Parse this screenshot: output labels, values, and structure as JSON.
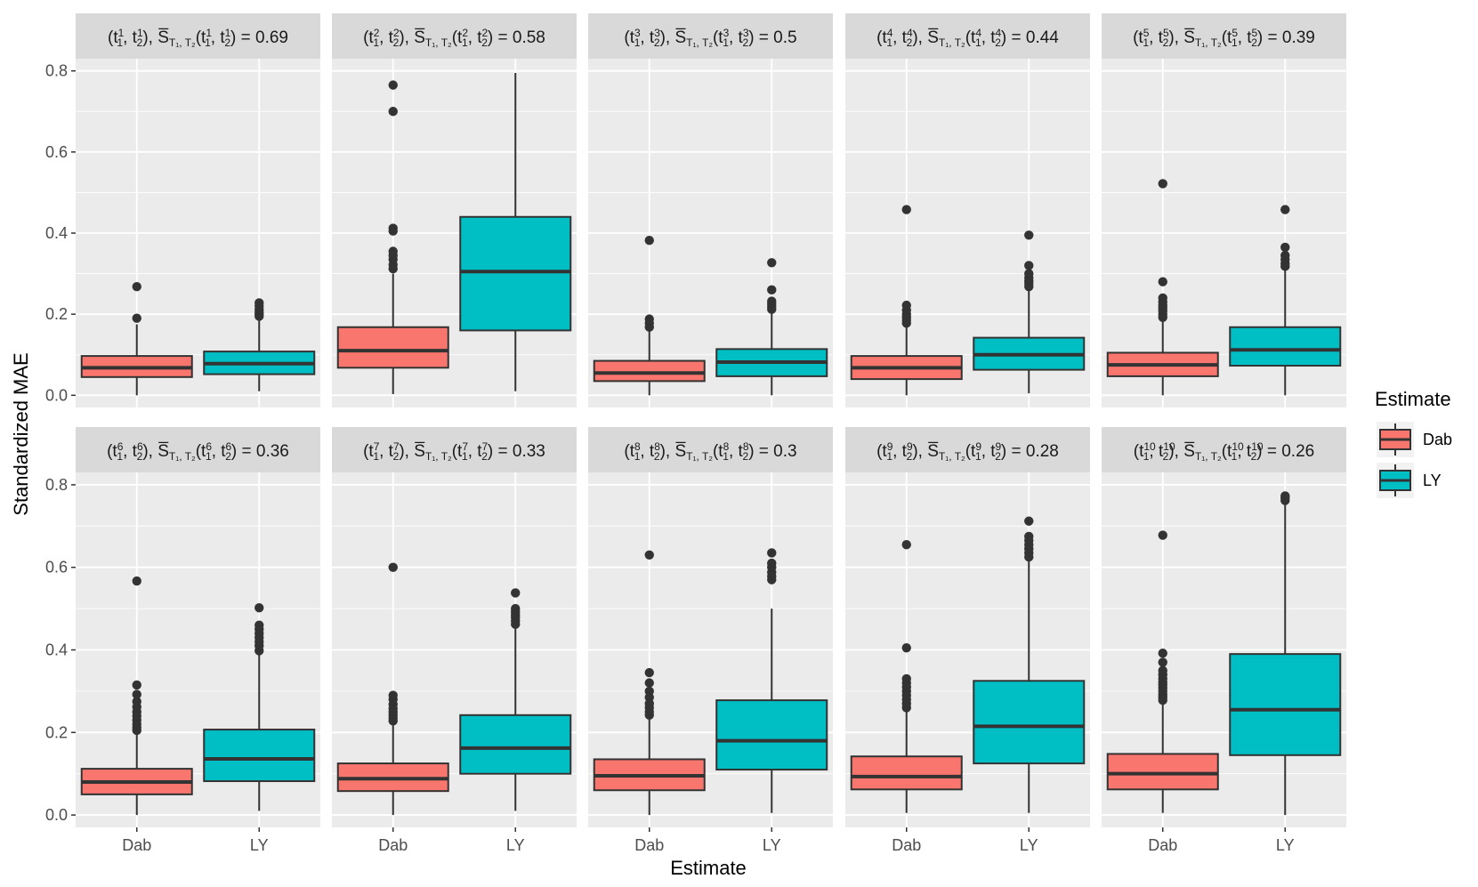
{
  "chart_data": {
    "type": "boxplot",
    "ylabel": "Standardized MAE",
    "xlabel": "Estimate",
    "ylim": [
      -0.03,
      0.83
    ],
    "y_ticks": [
      0.0,
      0.2,
      0.4,
      0.6,
      0.8
    ],
    "y_tick_labels": [
      "0.0",
      "0.2",
      "0.4",
      "0.6",
      "0.8"
    ],
    "categories": [
      "Dab",
      "LY"
    ],
    "legend": {
      "title": "Estimate",
      "position": "right",
      "entries": [
        {
          "label": "Dab",
          "color": "#F8766D"
        },
        {
          "label": "LY",
          "color": "#00BFC4"
        }
      ]
    },
    "panels": [
      {
        "index": 1,
        "s_value": "0.69",
        "boxes": [
          {
            "cat": "Dab",
            "min": 0.0,
            "q1": 0.045,
            "median": 0.068,
            "q3": 0.097,
            "max": 0.175,
            "outliers": [
              0.19,
              0.268
            ]
          },
          {
            "cat": "LY",
            "min": 0.01,
            "q1": 0.052,
            "median": 0.078,
            "q3": 0.108,
            "max": 0.188,
            "outliers": [
              0.195,
              0.2,
              0.205,
              0.212,
              0.22,
              0.228
            ]
          }
        ]
      },
      {
        "index": 2,
        "s_value": "0.58",
        "boxes": [
          {
            "cat": "Dab",
            "min": 0.003,
            "q1": 0.068,
            "median": 0.11,
            "q3": 0.168,
            "max": 0.3,
            "outliers": [
              0.312,
              0.322,
              0.335,
              0.345,
              0.355,
              0.405,
              0.412,
              0.7,
              0.765
            ]
          },
          {
            "cat": "LY",
            "min": 0.01,
            "q1": 0.16,
            "median": 0.305,
            "q3": 0.44,
            "max": 0.795,
            "outliers": []
          }
        ]
      },
      {
        "index": 3,
        "s_value": "0.5",
        "boxes": [
          {
            "cat": "Dab",
            "min": 0.0,
            "q1": 0.035,
            "median": 0.055,
            "q3": 0.085,
            "max": 0.16,
            "outliers": [
              0.168,
              0.178,
              0.188,
              0.382
            ]
          },
          {
            "cat": "LY",
            "min": 0.0,
            "q1": 0.047,
            "median": 0.082,
            "q3": 0.114,
            "max": 0.205,
            "outliers": [
              0.212,
              0.218,
              0.225,
              0.232,
              0.26,
              0.327
            ]
          }
        ]
      },
      {
        "index": 4,
        "s_value": "0.44",
        "boxes": [
          {
            "cat": "Dab",
            "min": 0.0,
            "q1": 0.04,
            "median": 0.068,
            "q3": 0.097,
            "max": 0.17,
            "outliers": [
              0.178,
              0.185,
              0.192,
              0.2,
              0.21,
              0.222,
              0.458
            ]
          },
          {
            "cat": "LY",
            "min": 0.005,
            "q1": 0.063,
            "median": 0.1,
            "q3": 0.142,
            "max": 0.26,
            "outliers": [
              0.268,
              0.275,
              0.282,
              0.29,
              0.3,
              0.32,
              0.395
            ]
          }
        ]
      },
      {
        "index": 5,
        "s_value": "0.39",
        "boxes": [
          {
            "cat": "Dab",
            "min": 0.0,
            "q1": 0.047,
            "median": 0.075,
            "q3": 0.105,
            "max": 0.185,
            "outliers": [
              0.192,
              0.2,
              0.208,
              0.215,
              0.222,
              0.23,
              0.24,
              0.28,
              0.522
            ]
          },
          {
            "cat": "LY",
            "min": 0.0,
            "q1": 0.073,
            "median": 0.112,
            "q3": 0.168,
            "max": 0.31,
            "outliers": [
              0.318,
              0.325,
              0.335,
              0.345,
              0.365,
              0.458
            ]
          }
        ]
      },
      {
        "index": 6,
        "s_value": "0.36",
        "boxes": [
          {
            "cat": "Dab",
            "min": 0.0,
            "q1": 0.05,
            "median": 0.08,
            "q3": 0.112,
            "max": 0.2,
            "outliers": [
              0.205,
              0.212,
              0.22,
              0.23,
              0.24,
              0.25,
              0.262,
              0.275,
              0.292,
              0.315,
              0.567
            ]
          },
          {
            "cat": "LY",
            "min": 0.01,
            "q1": 0.082,
            "median": 0.136,
            "q3": 0.207,
            "max": 0.39,
            "outliers": [
              0.398,
              0.41,
              0.42,
              0.43,
              0.44,
              0.45,
              0.46,
              0.502
            ]
          }
        ]
      },
      {
        "index": 7,
        "s_value": "0.33",
        "boxes": [
          {
            "cat": "Dab",
            "min": 0.0,
            "q1": 0.058,
            "median": 0.088,
            "q3": 0.125,
            "max": 0.22,
            "outliers": [
              0.228,
              0.235,
              0.242,
              0.25,
              0.258,
              0.268,
              0.28,
              0.29,
              0.6
            ]
          },
          {
            "cat": "LY",
            "min": 0.01,
            "q1": 0.1,
            "median": 0.162,
            "q3": 0.242,
            "max": 0.455,
            "outliers": [
              0.462,
              0.47,
              0.478,
              0.485,
              0.492,
              0.5,
              0.538
            ]
          }
        ]
      },
      {
        "index": 8,
        "s_value": "0.3",
        "boxes": [
          {
            "cat": "Dab",
            "min": 0.0,
            "q1": 0.06,
            "median": 0.095,
            "q3": 0.135,
            "max": 0.235,
            "outliers": [
              0.242,
              0.25,
              0.26,
              0.27,
              0.285,
              0.3,
              0.32,
              0.345,
              0.63
            ]
          },
          {
            "cat": "LY",
            "min": 0.005,
            "q1": 0.11,
            "median": 0.18,
            "q3": 0.278,
            "max": 0.5,
            "outliers": [
              0.57,
              0.578,
              0.588,
              0.6,
              0.61,
              0.635
            ]
          }
        ]
      },
      {
        "index": 9,
        "s_value": "0.28",
        "boxes": [
          {
            "cat": "Dab",
            "min": 0.005,
            "q1": 0.062,
            "median": 0.093,
            "q3": 0.142,
            "max": 0.25,
            "outliers": [
              0.26,
              0.27,
              0.28,
              0.29,
              0.3,
              0.31,
              0.32,
              0.33,
              0.405,
              0.655
            ]
          },
          {
            "cat": "LY",
            "min": 0.005,
            "q1": 0.125,
            "median": 0.215,
            "q3": 0.325,
            "max": 0.615,
            "outliers": [
              0.625,
              0.635,
              0.645,
              0.655,
              0.665,
              0.675,
              0.712
            ]
          }
        ]
      },
      {
        "index": 10,
        "s_value": "0.26",
        "boxes": [
          {
            "cat": "Dab",
            "min": 0.005,
            "q1": 0.062,
            "median": 0.1,
            "q3": 0.148,
            "max": 0.27,
            "outliers": [
              0.278,
              0.285,
              0.292,
              0.3,
              0.308,
              0.315,
              0.322,
              0.33,
              0.34,
              0.35,
              0.37,
              0.392,
              0.678
            ]
          },
          {
            "cat": "LY",
            "min": 0.0,
            "q1": 0.145,
            "median": 0.255,
            "q3": 0.39,
            "max": 0.755,
            "outliers": [
              0.762,
              0.768,
              0.773
            ]
          }
        ]
      }
    ]
  }
}
